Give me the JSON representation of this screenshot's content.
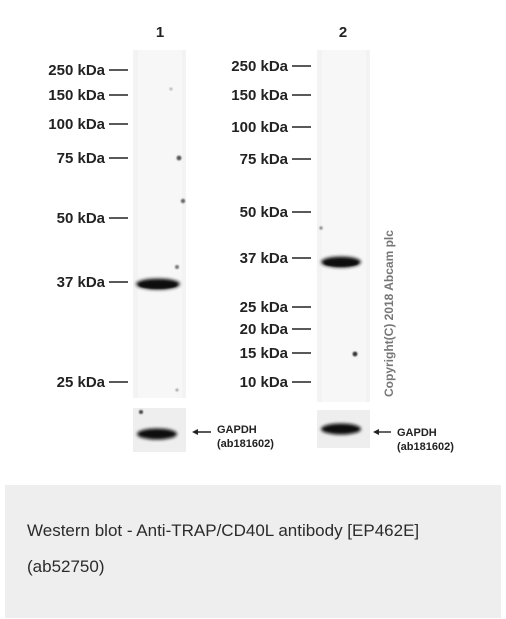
{
  "lanes": [
    {
      "number": "1",
      "markers": [
        "250 kDa",
        "150 kDa",
        "100 kDa",
        "75 kDa",
        "50 kDa",
        "37 kDa",
        "25 kDa"
      ],
      "loading_control": "GAPDH",
      "loading_control_id": "(ab181602)"
    },
    {
      "number": "2",
      "markers": [
        "250 kDa",
        "150 kDa",
        "100 kDa",
        "75 kDa",
        "50 kDa",
        "37 kDa",
        "25 kDa",
        "20 kDa",
        "15 kDa",
        "10 kDa"
      ],
      "loading_control": "GAPDH",
      "loading_control_id": "(ab181602)"
    }
  ],
  "copyright": "Copyright(C) 2018 Abcam plc",
  "caption": "Western blot - Anti-TRAP/CD40L antibody [EP462E] (ab52750)"
}
